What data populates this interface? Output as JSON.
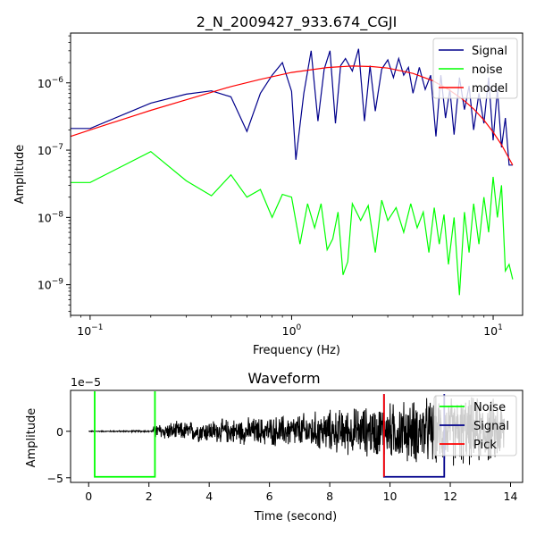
{
  "chart_data": [
    {
      "type": "line",
      "title": "2_N_2009427_933.674_CGJI",
      "xlabel": "Frequency (Hz)",
      "ylabel": "Amplitude",
      "xscale": "log",
      "yscale": "log",
      "xlim": [
        0.08,
        14
      ],
      "ylim": [
        3.5e-10,
        5.5e-06
      ],
      "xticks": [
        {
          "v": 0.1,
          "base": "10",
          "exp": "−1"
        },
        {
          "v": 1,
          "base": "10",
          "exp": "0"
        },
        {
          "v": 10,
          "base": "10",
          "exp": "1"
        }
      ],
      "yticks": [
        {
          "v": 1e-09,
          "base": "10",
          "exp": "−9"
        },
        {
          "v": 1e-08,
          "base": "10",
          "exp": "−8"
        },
        {
          "v": 1e-07,
          "base": "10",
          "exp": "−7"
        },
        {
          "v": 1e-06,
          "base": "10",
          "exp": "−6"
        }
      ],
      "grid": false,
      "legend_position": "top-right",
      "series": [
        {
          "name": "Signal",
          "color": "#00008b",
          "x": [
            0.08,
            0.1,
            0.2,
            0.3,
            0.4,
            0.5,
            0.6,
            0.7,
            0.8,
            0.9,
            1.0,
            1.05,
            1.15,
            1.25,
            1.35,
            1.45,
            1.55,
            1.65,
            1.75,
            1.85,
            2.0,
            2.15,
            2.3,
            2.45,
            2.6,
            2.8,
            3.0,
            3.2,
            3.4,
            3.6,
            3.8,
            4.0,
            4.3,
            4.6,
            4.9,
            5.2,
            5.5,
            5.8,
            6.1,
            6.4,
            6.8,
            7.2,
            7.6,
            8.0,
            8.5,
            9.0,
            9.5,
            10.0,
            10.5,
            11.0,
            11.5,
            12.0,
            12.5
          ],
          "y": [
            2.1e-07,
            2.1e-07,
            5e-07,
            6.8e-07,
            7.6e-07,
            6.2e-07,
            1.9e-07,
            7e-07,
            1.3e-06,
            2e-06,
            7.5e-07,
            7.2e-08,
            7e-07,
            3e-06,
            2.7e-07,
            1.6e-06,
            3e-06,
            2.5e-07,
            1.8e-06,
            2.3e-06,
            1.5e-06,
            3.2e-06,
            2.7e-07,
            1.8e-06,
            3.8e-07,
            1.6e-06,
            2.2e-06,
            1.2e-06,
            2.3e-06,
            1.3e-06,
            1.7e-06,
            7e-07,
            1.7e-06,
            8e-07,
            1.3e-06,
            1.6e-07,
            1.3e-06,
            3e-07,
            8e-07,
            1.7e-07,
            1.2e-06,
            4e-07,
            9e-07,
            2e-07,
            7e-07,
            2.5e-07,
            1.2e-06,
            1.4e-07,
            8e-07,
            1.1e-07,
            3e-07,
            6e-08,
            6e-08
          ]
        },
        {
          "name": "noise",
          "color": "#00ff00",
          "x": [
            0.08,
            0.1,
            0.2,
            0.3,
            0.4,
            0.5,
            0.6,
            0.7,
            0.8,
            0.9,
            1.0,
            1.1,
            1.2,
            1.3,
            1.4,
            1.5,
            1.6,
            1.7,
            1.8,
            1.9,
            2.0,
            2.2,
            2.4,
            2.6,
            2.8,
            3.0,
            3.3,
            3.6,
            3.9,
            4.2,
            4.5,
            4.8,
            5.1,
            5.4,
            5.7,
            6.0,
            6.4,
            6.8,
            7.2,
            7.6,
            8.0,
            8.5,
            9.0,
            9.5,
            10.0,
            10.5,
            11.0,
            11.5,
            12.0,
            12.5
          ],
          "y": [
            3.3e-08,
            3.3e-08,
            9.5e-08,
            3.5e-08,
            2.1e-08,
            4.3e-08,
            2e-08,
            2.6e-08,
            1e-08,
            2.2e-08,
            2e-08,
            4e-09,
            1.6e-08,
            7e-09,
            1.6e-08,
            3.3e-09,
            4.8e-09,
            1.2e-08,
            1.4e-09,
            2.2e-09,
            1.6e-08,
            9e-09,
            1.5e-08,
            3e-09,
            1.8e-08,
            9e-09,
            1.4e-08,
            6e-09,
            1.6e-08,
            7e-09,
            1.2e-08,
            3e-09,
            1.4e-08,
            4e-09,
            1.1e-08,
            2e-09,
            1e-08,
            7e-10,
            1.2e-08,
            3e-09,
            1.6e-08,
            4e-09,
            2e-08,
            6e-09,
            4e-08,
            1e-08,
            3e-08,
            1.6e-09,
            2e-09,
            1.2e-09
          ]
        },
        {
          "name": "model",
          "color": "#ff0000",
          "x": [
            0.08,
            0.1,
            0.2,
            0.3,
            0.5,
            0.7,
            1.0,
            1.5,
            2.0,
            2.5,
            3.0,
            4.0,
            5.0,
            6.0,
            7.0,
            8.0,
            9.0,
            10.0,
            11.0,
            12.0,
            12.5
          ],
          "y": [
            1.6e-07,
            2e-07,
            3.9e-07,
            5.6e-07,
            8.8e-07,
            1.13e-06,
            1.43e-06,
            1.69e-06,
            1.78e-06,
            1.75e-06,
            1.66e-06,
            1.38e-06,
            1.08e-06,
            8e-07,
            5.8e-07,
            4.1e-07,
            2.8e-07,
            1.85e-07,
            1.2e-07,
            7.5e-08,
            6e-08
          ]
        }
      ]
    },
    {
      "type": "line",
      "title": "Waveform",
      "xlabel": "Time (second)",
      "ylabel": "Amplitude",
      "offset_text": "1e−5",
      "xlim": [
        -0.6,
        14.4
      ],
      "ylim": [
        -5.5,
        4.4
      ],
      "xticks": [
        0,
        2,
        4,
        6,
        8,
        10,
        12,
        14
      ],
      "yticks": [
        -5,
        0
      ],
      "grid": false,
      "legend_position": "top-right",
      "waveform": {
        "color": "#000000",
        "t_start": 0.0,
        "t_end": 13.8,
        "envelope": [
          [
            0.0,
            0.05
          ],
          [
            2.1,
            0.12
          ],
          [
            2.2,
            1.0
          ],
          [
            4.0,
            1.4
          ],
          [
            6.0,
            1.8
          ],
          [
            7.5,
            2.4
          ],
          [
            8.5,
            2.8
          ],
          [
            9.5,
            3.2
          ],
          [
            10.5,
            3.8
          ],
          [
            12.0,
            4.3
          ],
          [
            13.8,
            3.9
          ]
        ]
      },
      "windows": [
        {
          "name": "Noise",
          "color": "#00ff00",
          "t0": 0.2,
          "t1": 2.2,
          "top": 4.3,
          "bottom": -4.9
        },
        {
          "name": "Signal",
          "color": "#00008b",
          "t0": 9.8,
          "t1": 11.8,
          "top": 4.0,
          "bottom": -4.9
        },
        {
          "name": "Pick",
          "color": "#ff0000",
          "t0": 9.8,
          "t1": 9.8,
          "top": 4.0,
          "bottom": -4.9
        }
      ],
      "legend": [
        {
          "name": "Noise",
          "color": "#00ff00"
        },
        {
          "name": "Signal",
          "color": "#00008b"
        },
        {
          "name": "Pick",
          "color": "#ff0000"
        }
      ]
    }
  ]
}
